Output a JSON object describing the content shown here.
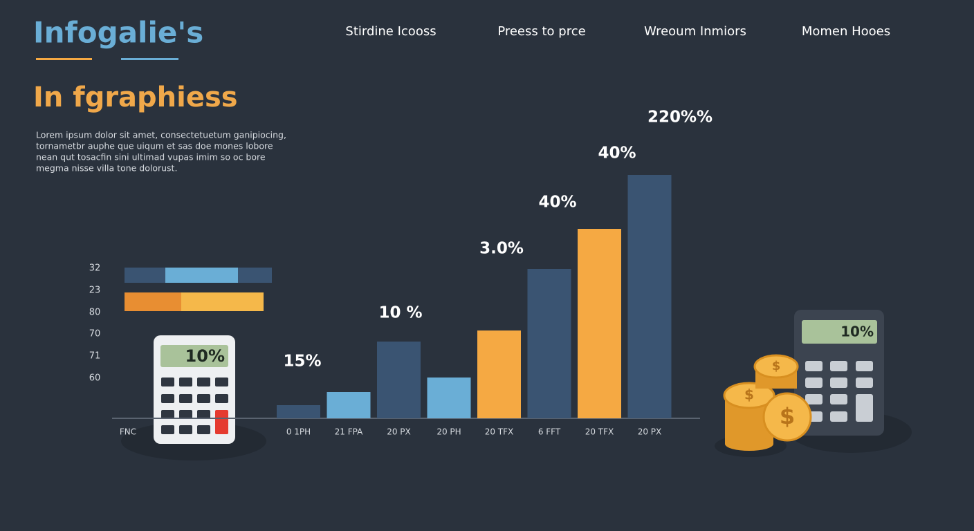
{
  "header": {
    "logo": "Infogalie's",
    "nav": [
      "Stirdine Icooss",
      "Preess to prce",
      "Wreoum Inmiors",
      "Momen Hooes"
    ]
  },
  "heading": "In fgraphiess",
  "paragraph": [
    "Lorem ipsum dolor sit amet, consectetuetum ganipiocing,",
    "tornametbr auphe que uiqum et sas doe mones lobore",
    "nean qut tosacfin sini ultimad vupas imim so oc bore",
    "megma nisse villa tone dolorust."
  ],
  "side_labels": [
    "32",
    "23",
    "80",
    "70",
    "71",
    "60"
  ],
  "left_label": "FNC",
  "calculator_displays": [
    "10%",
    "10%"
  ],
  "coin_symbol": "$",
  "chart_data": {
    "type": "bar",
    "categories": [
      "0 1PH",
      "21 FPA",
      "20 PX",
      "20 PH",
      "20 TFX",
      "6 FFT",
      "20 TFX",
      "20 PX"
    ],
    "values": [
      19,
      38,
      111,
      59,
      127,
      216,
      274,
      352
    ],
    "colors": [
      "#3a5472",
      "#6aaed6",
      "#3a5472",
      "#6aaed6",
      "#f5a943",
      "#3a5472",
      "#f5a943",
      "#3a5472"
    ],
    "ylim": [
      0,
      400
    ],
    "annotations": [
      "15%",
      "10 %",
      "3.0%",
      "40%",
      "40%",
      "220%%"
    ]
  }
}
